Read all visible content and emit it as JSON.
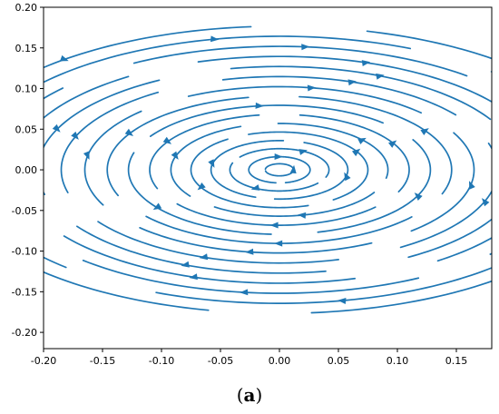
{
  "chart_data": {
    "type": "streamplot",
    "title": "",
    "xlabel": "",
    "ylabel": "",
    "xlim": [
      -0.2,
      0.18
    ],
    "ylim": [
      -0.22,
      0.2
    ],
    "x_ticks": [
      "-0.20",
      "-0.15",
      "-0.10",
      "-0.05",
      "0.00",
      "0.05",
      "0.10",
      "0.15"
    ],
    "x_tick_values": [
      -0.2,
      -0.15,
      -0.1,
      -0.05,
      0.0,
      0.05,
      0.1,
      0.15
    ],
    "y_ticks": [
      "0.20",
      "0.15",
      "0.10",
      "0.05",
      "0.00",
      "-0.05",
      "-0.10",
      "-0.15",
      "-0.20"
    ],
    "y_tick_values": [
      0.2,
      0.15,
      0.1,
      0.05,
      0.0,
      -0.05,
      -0.1,
      -0.15,
      -0.2
    ],
    "center": [
      0.0,
      0.0
    ],
    "rotation": "clockwise",
    "aspect_ratio_b_over_a": 0.62,
    "streamline_semi_major_axes": [
      0.012,
      0.026,
      0.042,
      0.058,
      0.075,
      0.092,
      0.11,
      0.128,
      0.146,
      0.165,
      0.185,
      0.205,
      0.225,
      0.245,
      0.265,
      0.285
    ],
    "line_color": "#1f77b4",
    "grid": false,
    "legend": "none"
  },
  "caption": {
    "open": "(",
    "letter": "a",
    "close": ")"
  }
}
